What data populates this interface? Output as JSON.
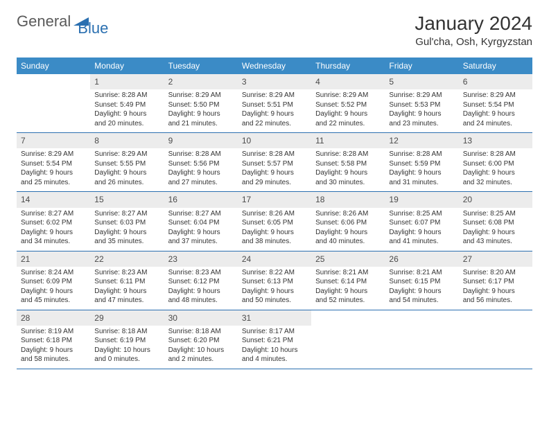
{
  "logo": {
    "text1": "General",
    "text2": "Blue",
    "icon_color": "#2a6fb0"
  },
  "title": "January 2024",
  "location": "Gul'cha, Osh, Kyrgyzstan",
  "colors": {
    "header_bg": "#3b8bc6",
    "header_text": "#ffffff",
    "daynum_bg": "#ececec",
    "border": "#2a6fb0",
    "body_text": "#333333"
  },
  "dow": [
    "Sunday",
    "Monday",
    "Tuesday",
    "Wednesday",
    "Thursday",
    "Friday",
    "Saturday"
  ],
  "start_offset": 1,
  "days": [
    {
      "n": 1,
      "sunrise": "8:28 AM",
      "sunset": "5:49 PM",
      "daylight": "9 hours and 20 minutes."
    },
    {
      "n": 2,
      "sunrise": "8:29 AM",
      "sunset": "5:50 PM",
      "daylight": "9 hours and 21 minutes."
    },
    {
      "n": 3,
      "sunrise": "8:29 AM",
      "sunset": "5:51 PM",
      "daylight": "9 hours and 22 minutes."
    },
    {
      "n": 4,
      "sunrise": "8:29 AM",
      "sunset": "5:52 PM",
      "daylight": "9 hours and 22 minutes."
    },
    {
      "n": 5,
      "sunrise": "8:29 AM",
      "sunset": "5:53 PM",
      "daylight": "9 hours and 23 minutes."
    },
    {
      "n": 6,
      "sunrise": "8:29 AM",
      "sunset": "5:54 PM",
      "daylight": "9 hours and 24 minutes."
    },
    {
      "n": 7,
      "sunrise": "8:29 AM",
      "sunset": "5:54 PM",
      "daylight": "9 hours and 25 minutes."
    },
    {
      "n": 8,
      "sunrise": "8:29 AM",
      "sunset": "5:55 PM",
      "daylight": "9 hours and 26 minutes."
    },
    {
      "n": 9,
      "sunrise": "8:28 AM",
      "sunset": "5:56 PM",
      "daylight": "9 hours and 27 minutes."
    },
    {
      "n": 10,
      "sunrise": "8:28 AM",
      "sunset": "5:57 PM",
      "daylight": "9 hours and 29 minutes."
    },
    {
      "n": 11,
      "sunrise": "8:28 AM",
      "sunset": "5:58 PM",
      "daylight": "9 hours and 30 minutes."
    },
    {
      "n": 12,
      "sunrise": "8:28 AM",
      "sunset": "5:59 PM",
      "daylight": "9 hours and 31 minutes."
    },
    {
      "n": 13,
      "sunrise": "8:28 AM",
      "sunset": "6:00 PM",
      "daylight": "9 hours and 32 minutes."
    },
    {
      "n": 14,
      "sunrise": "8:27 AM",
      "sunset": "6:02 PM",
      "daylight": "9 hours and 34 minutes."
    },
    {
      "n": 15,
      "sunrise": "8:27 AM",
      "sunset": "6:03 PM",
      "daylight": "9 hours and 35 minutes."
    },
    {
      "n": 16,
      "sunrise": "8:27 AM",
      "sunset": "6:04 PM",
      "daylight": "9 hours and 37 minutes."
    },
    {
      "n": 17,
      "sunrise": "8:26 AM",
      "sunset": "6:05 PM",
      "daylight": "9 hours and 38 minutes."
    },
    {
      "n": 18,
      "sunrise": "8:26 AM",
      "sunset": "6:06 PM",
      "daylight": "9 hours and 40 minutes."
    },
    {
      "n": 19,
      "sunrise": "8:25 AM",
      "sunset": "6:07 PM",
      "daylight": "9 hours and 41 minutes."
    },
    {
      "n": 20,
      "sunrise": "8:25 AM",
      "sunset": "6:08 PM",
      "daylight": "9 hours and 43 minutes."
    },
    {
      "n": 21,
      "sunrise": "8:24 AM",
      "sunset": "6:09 PM",
      "daylight": "9 hours and 45 minutes."
    },
    {
      "n": 22,
      "sunrise": "8:23 AM",
      "sunset": "6:11 PM",
      "daylight": "9 hours and 47 minutes."
    },
    {
      "n": 23,
      "sunrise": "8:23 AM",
      "sunset": "6:12 PM",
      "daylight": "9 hours and 48 minutes."
    },
    {
      "n": 24,
      "sunrise": "8:22 AM",
      "sunset": "6:13 PM",
      "daylight": "9 hours and 50 minutes."
    },
    {
      "n": 25,
      "sunrise": "8:21 AM",
      "sunset": "6:14 PM",
      "daylight": "9 hours and 52 minutes."
    },
    {
      "n": 26,
      "sunrise": "8:21 AM",
      "sunset": "6:15 PM",
      "daylight": "9 hours and 54 minutes."
    },
    {
      "n": 27,
      "sunrise": "8:20 AM",
      "sunset": "6:17 PM",
      "daylight": "9 hours and 56 minutes."
    },
    {
      "n": 28,
      "sunrise": "8:19 AM",
      "sunset": "6:18 PM",
      "daylight": "9 hours and 58 minutes."
    },
    {
      "n": 29,
      "sunrise": "8:18 AM",
      "sunset": "6:19 PM",
      "daylight": "10 hours and 0 minutes."
    },
    {
      "n": 30,
      "sunrise": "8:18 AM",
      "sunset": "6:20 PM",
      "daylight": "10 hours and 2 minutes."
    },
    {
      "n": 31,
      "sunrise": "8:17 AM",
      "sunset": "6:21 PM",
      "daylight": "10 hours and 4 minutes."
    }
  ],
  "labels": {
    "sunrise": "Sunrise: ",
    "sunset": "Sunset: ",
    "daylight": "Daylight: "
  }
}
